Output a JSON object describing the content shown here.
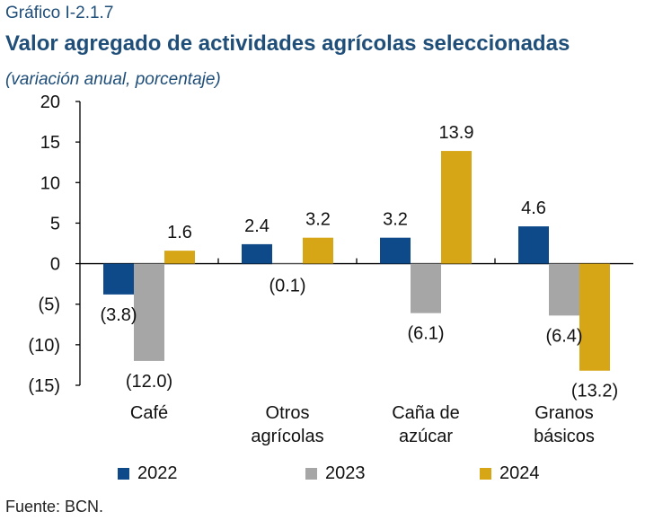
{
  "header": {
    "label": "Gráfico I-2.1.7",
    "title": "Valor agregado de actividades agrícolas seleccionadas",
    "subtitle": "(variación anual, porcentaje)"
  },
  "footer": {
    "source": "Fuente: BCN."
  },
  "colors": {
    "2022": "#0e4a8a",
    "2023": "#a6a6a6",
    "2024": "#d6a617"
  },
  "chart_data": {
    "type": "bar",
    "title": "Valor agregado de actividades agrícolas seleccionadas",
    "subtitle": "(variación anual, porcentaje)",
    "categories": [
      [
        "Café"
      ],
      [
        "Otros",
        "agrícolas"
      ],
      [
        "Caña de",
        "azúcar"
      ],
      [
        "Granos",
        "básicos"
      ]
    ],
    "series": [
      {
        "name": "2022",
        "values": [
          -3.8,
          2.4,
          3.2,
          4.6
        ],
        "labels": [
          "(3.8)",
          "2.4",
          "3.2",
          "4.6"
        ]
      },
      {
        "name": "2023",
        "values": [
          -12.0,
          -0.1,
          -6.1,
          -6.4
        ],
        "labels": [
          "(12.0)",
          "(0.1)",
          "(6.1)",
          "(6.4)"
        ]
      },
      {
        "name": "2024",
        "values": [
          1.6,
          3.2,
          13.9,
          -13.2
        ],
        "labels": [
          "1.6",
          "3.2",
          "13.9",
          "(13.2)"
        ]
      }
    ],
    "ylim": [
      -15,
      20
    ],
    "yticks": [
      20,
      15,
      10,
      5,
      0,
      -5,
      -10,
      -15
    ],
    "ytick_labels": [
      "20",
      "15",
      "10",
      "5",
      "0",
      "(5)",
      "(10)",
      "(15)"
    ],
    "xlabel": "",
    "ylabel": "",
    "grid": false,
    "legend_position": "bottom"
  }
}
